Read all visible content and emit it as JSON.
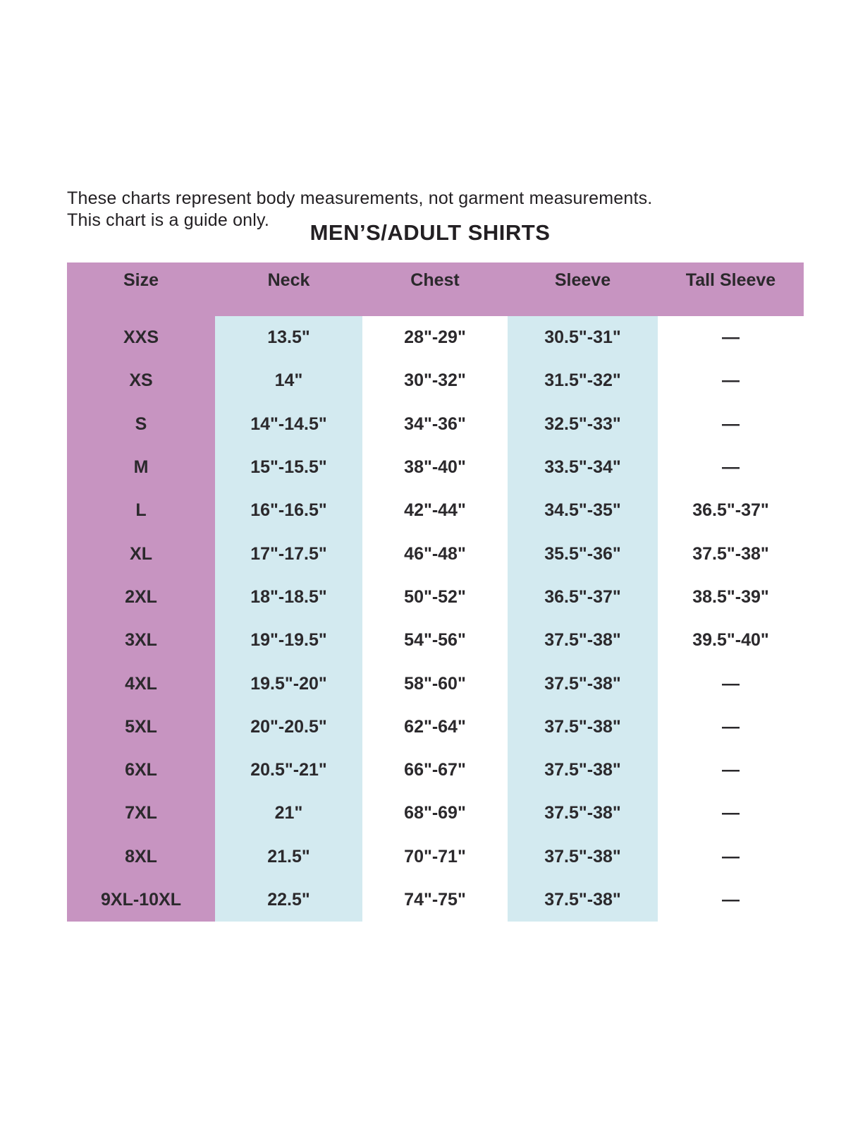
{
  "page": {
    "note_line1": "These charts represent body measurements, not garment measurements.",
    "note_line2": "This chart is a guide only.",
    "title": "MEN’S/ADULT SHIRTS"
  },
  "colors": {
    "header_pink": "#c794c1",
    "size_column_pink": "#c794c1",
    "band_blue": "#d3eaf0",
    "text_dark": "#2b292c",
    "right_border": "#414042"
  },
  "table": {
    "columns": [
      "Size",
      "Neck",
      "Chest",
      "Sleeve",
      "Tall Sleeve"
    ],
    "rows": [
      {
        "size": "XXS",
        "neck": "13.5\"",
        "chest": "28\"-29\"",
        "sleeve": "30.5\"-31\"",
        "tall_sleeve": "—"
      },
      {
        "size": "XS",
        "neck": "14\"",
        "chest": "30\"-32\"",
        "sleeve": "31.5\"-32\"",
        "tall_sleeve": "—"
      },
      {
        "size": "S",
        "neck": "14\"-14.5\"",
        "chest": "34\"-36\"",
        "sleeve": "32.5\"-33\"",
        "tall_sleeve": "—"
      },
      {
        "size": "M",
        "neck": "15\"-15.5\"",
        "chest": "38\"-40\"",
        "sleeve": "33.5\"-34\"",
        "tall_sleeve": "—"
      },
      {
        "size": "L",
        "neck": "16\"-16.5\"",
        "chest": "42\"-44\"",
        "sleeve": "34.5\"-35\"",
        "tall_sleeve": "36.5\"-37\""
      },
      {
        "size": "XL",
        "neck": "17\"-17.5\"",
        "chest": "46\"-48\"",
        "sleeve": "35.5\"-36\"",
        "tall_sleeve": "37.5\"-38\""
      },
      {
        "size": "2XL",
        "neck": "18\"-18.5\"",
        "chest": "50\"-52\"",
        "sleeve": "36.5\"-37\"",
        "tall_sleeve": "38.5\"-39\""
      },
      {
        "size": "3XL",
        "neck": "19\"-19.5\"",
        "chest": "54\"-56\"",
        "sleeve": "37.5\"-38\"",
        "tall_sleeve": "39.5\"-40\""
      },
      {
        "size": "4XL",
        "neck": "19.5\"-20\"",
        "chest": "58\"-60\"",
        "sleeve": "37.5\"-38\"",
        "tall_sleeve": "—"
      },
      {
        "size": "5XL",
        "neck": "20\"-20.5\"",
        "chest": "62\"-64\"",
        "sleeve": "37.5\"-38\"",
        "tall_sleeve": "—"
      },
      {
        "size": "6XL",
        "neck": "20.5\"-21\"",
        "chest": "66\"-67\"",
        "sleeve": "37.5\"-38\"",
        "tall_sleeve": "—"
      },
      {
        "size": "7XL",
        "neck": "21\"",
        "chest": "68\"-69\"",
        "sleeve": "37.5\"-38\"",
        "tall_sleeve": "—"
      },
      {
        "size": "8XL",
        "neck": "21.5\"",
        "chest": "70\"-71\"",
        "sleeve": "37.5\"-38\"",
        "tall_sleeve": "—"
      },
      {
        "size": "9XL-10XL",
        "neck": "22.5\"",
        "chest": "74\"-75\"",
        "sleeve": "37.5\"-38\"",
        "tall_sleeve": "—"
      }
    ]
  }
}
